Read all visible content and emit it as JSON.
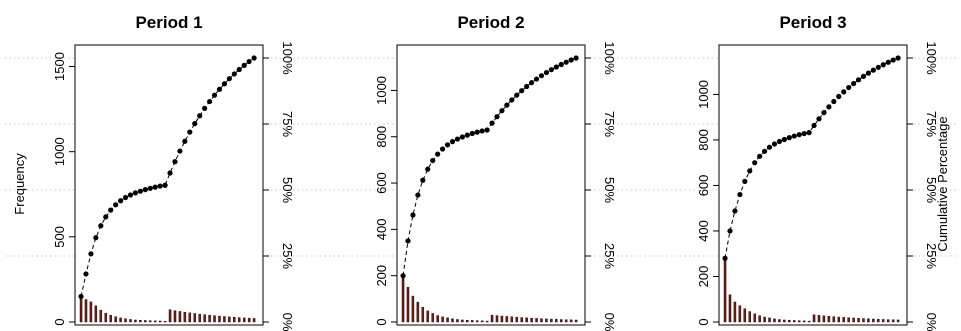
{
  "chart_data": {
    "type": "bar",
    "ylabel_left": "Frequency",
    "ylabel_right": "Cumulative Percentage",
    "right_ticks": [
      "0%",
      "25%",
      "50%",
      "75%",
      "100%"
    ],
    "grid": "horizontal dotted at cumulative 25% steps",
    "colors": {
      "bars": "#7a1a10",
      "line": "#000000",
      "grid": "#c8c8c8"
    },
    "panels": [
      {
        "title": "Period 1",
        "total": 1550,
        "ylim": [
          0,
          1620
        ],
        "yticks": [
          0,
          500,
          1000,
          1500
        ],
        "first_bars": [
          150,
          132,
          118,
          95,
          70,
          52,
          40,
          31,
          24,
          19,
          15,
          12,
          10,
          9,
          8,
          7,
          6,
          5
        ]
      },
      {
        "title": "Period 2",
        "total": 1140,
        "ylim": [
          0,
          1190
        ],
        "yticks": [
          0,
          200,
          400,
          600,
          800,
          1000
        ],
        "first_bars": [
          200,
          150,
          112,
          86,
          64,
          48,
          37,
          28,
          22,
          18,
          14,
          11,
          9,
          8,
          7,
          6,
          5,
          4
        ]
      },
      {
        "title": "Period 3",
        "total": 1160,
        "ylim": [
          0,
          1210
        ],
        "yticks": [
          0,
          200,
          400,
          600,
          800,
          1000
        ],
        "first_bars": [
          280,
          120,
          88,
          72,
          58,
          46,
          36,
          28,
          22,
          18,
          14,
          11,
          9,
          8,
          7,
          6,
          5,
          4
        ]
      }
    ]
  }
}
